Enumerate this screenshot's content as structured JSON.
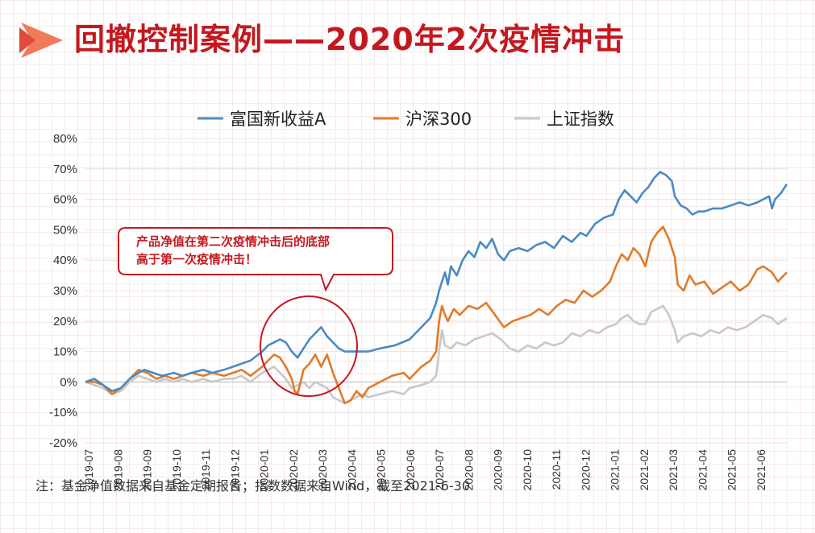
{
  "page": {
    "title": "回撤控制案例——2020年2次疫情冲击",
    "note": "注：基金净值数据来自基金定期报告；指数数据来自Wind，截至2021-6-30",
    "annotation": {
      "line1": "产品净值在第二次疫情冲击后的底部",
      "line2": "高于第一次疫情冲击！"
    }
  },
  "colors": {
    "accent": "#c3181f",
    "series_blue": "#4a8ac4",
    "series_orange": "#e07b2a",
    "series_gray": "#c8c8c8"
  },
  "chart_data": {
    "type": "line",
    "ylim": [
      -20,
      80
    ],
    "yticks": [
      "80%",
      "70%",
      "60%",
      "50%",
      "40%",
      "30%",
      "20%",
      "10%",
      "0%",
      "-10%",
      "-20%"
    ],
    "yticks_values": [
      80,
      70,
      60,
      50,
      40,
      30,
      20,
      10,
      0,
      -10,
      -20
    ],
    "categories": [
      "2019-07",
      "2019-08",
      "2019-09",
      "2019-10",
      "2019-11",
      "2019-12",
      "2020-01",
      "2020-02",
      "2020-03",
      "2020-04",
      "2020-05",
      "2020-06",
      "2020-07",
      "2020-08",
      "2020-09",
      "2020-10",
      "2020-11",
      "2020-12",
      "2021-01",
      "2021-02",
      "2021-03",
      "2021-04",
      "2021-05",
      "2021-06"
    ],
    "x_range": [
      0,
      23.8
    ],
    "legend_position": "top-center",
    "series": [
      {
        "name": "富国新收益A",
        "color": "#4a8ac4",
        "points": [
          [
            0,
            0
          ],
          [
            0.3,
            1
          ],
          [
            0.6,
            -1
          ],
          [
            0.9,
            -3
          ],
          [
            1.2,
            -2
          ],
          [
            1.5,
            1
          ],
          [
            1.8,
            3
          ],
          [
            2.0,
            4
          ],
          [
            2.3,
            3
          ],
          [
            2.6,
            2
          ],
          [
            3.0,
            3
          ],
          [
            3.3,
            2
          ],
          [
            3.6,
            3
          ],
          [
            4.0,
            4
          ],
          [
            4.3,
            3
          ],
          [
            4.7,
            4
          ],
          [
            5.0,
            5
          ],
          [
            5.3,
            6
          ],
          [
            5.6,
            7
          ],
          [
            6.0,
            10
          ],
          [
            6.2,
            12
          ],
          [
            6.4,
            13
          ],
          [
            6.6,
            14
          ],
          [
            6.8,
            13
          ],
          [
            7.0,
            10
          ],
          [
            7.2,
            8
          ],
          [
            7.4,
            11
          ],
          [
            7.6,
            14
          ],
          [
            7.8,
            16
          ],
          [
            8.0,
            18
          ],
          [
            8.2,
            15
          ],
          [
            8.4,
            13
          ],
          [
            8.6,
            11
          ],
          [
            8.8,
            10
          ],
          [
            9.0,
            10
          ],
          [
            9.3,
            10
          ],
          [
            9.6,
            10
          ],
          [
            10.0,
            11
          ],
          [
            10.5,
            12
          ],
          [
            11.0,
            14
          ],
          [
            11.4,
            18
          ],
          [
            11.7,
            21
          ],
          [
            11.9,
            26
          ],
          [
            12.0,
            30
          ],
          [
            12.1,
            33
          ],
          [
            12.2,
            36
          ],
          [
            12.3,
            32
          ],
          [
            12.4,
            38
          ],
          [
            12.6,
            35
          ],
          [
            12.8,
            40
          ],
          [
            13.0,
            43
          ],
          [
            13.2,
            41
          ],
          [
            13.4,
            46
          ],
          [
            13.6,
            44
          ],
          [
            13.8,
            47
          ],
          [
            14.0,
            42
          ],
          [
            14.2,
            40
          ],
          [
            14.4,
            43
          ],
          [
            14.7,
            44
          ],
          [
            15.0,
            43
          ],
          [
            15.3,
            45
          ],
          [
            15.6,
            46
          ],
          [
            15.9,
            44
          ],
          [
            16.2,
            48
          ],
          [
            16.5,
            46
          ],
          [
            16.8,
            49
          ],
          [
            17.0,
            48
          ],
          [
            17.3,
            52
          ],
          [
            17.6,
            54
          ],
          [
            17.9,
            55
          ],
          [
            18.1,
            60
          ],
          [
            18.3,
            63
          ],
          [
            18.5,
            61
          ],
          [
            18.7,
            59
          ],
          [
            18.9,
            62
          ],
          [
            19.1,
            64
          ],
          [
            19.3,
            67
          ],
          [
            19.5,
            69
          ],
          [
            19.7,
            68
          ],
          [
            19.9,
            66
          ],
          [
            20.0,
            61
          ],
          [
            20.2,
            58
          ],
          [
            20.4,
            57
          ],
          [
            20.6,
            55
          ],
          [
            20.8,
            56
          ],
          [
            21.0,
            56
          ],
          [
            21.3,
            57
          ],
          [
            21.6,
            57
          ],
          [
            21.9,
            58
          ],
          [
            22.2,
            59
          ],
          [
            22.5,
            58
          ],
          [
            22.8,
            59
          ],
          [
            23.0,
            60
          ],
          [
            23.2,
            61
          ],
          [
            23.3,
            57
          ],
          [
            23.4,
            60
          ],
          [
            23.6,
            62
          ],
          [
            23.8,
            65
          ]
        ]
      },
      {
        "name": "沪深300",
        "color": "#e07b2a",
        "points": [
          [
            0,
            0
          ],
          [
            0.3,
            0
          ],
          [
            0.6,
            -1
          ],
          [
            0.9,
            -4
          ],
          [
            1.2,
            -2
          ],
          [
            1.5,
            1
          ],
          [
            1.8,
            4
          ],
          [
            2.1,
            3
          ],
          [
            2.4,
            1
          ],
          [
            2.7,
            2
          ],
          [
            3.0,
            1
          ],
          [
            3.3,
            2
          ],
          [
            3.6,
            3
          ],
          [
            4.0,
            2
          ],
          [
            4.3,
            3
          ],
          [
            4.7,
            2
          ],
          [
            5.0,
            3
          ],
          [
            5.3,
            4
          ],
          [
            5.6,
            2
          ],
          [
            6.0,
            5
          ],
          [
            6.2,
            7
          ],
          [
            6.4,
            9
          ],
          [
            6.6,
            8
          ],
          [
            6.8,
            5
          ],
          [
            7.0,
            1
          ],
          [
            7.1,
            -3
          ],
          [
            7.2,
            -4
          ],
          [
            7.4,
            4
          ],
          [
            7.6,
            6
          ],
          [
            7.8,
            9
          ],
          [
            8.0,
            5
          ],
          [
            8.2,
            9
          ],
          [
            8.4,
            3
          ],
          [
            8.6,
            -2
          ],
          [
            8.8,
            -7
          ],
          [
            9.0,
            -6
          ],
          [
            9.2,
            -3
          ],
          [
            9.4,
            -5
          ],
          [
            9.6,
            -2
          ],
          [
            10.0,
            0
          ],
          [
            10.4,
            2
          ],
          [
            10.8,
            3
          ],
          [
            11.0,
            1
          ],
          [
            11.4,
            5
          ],
          [
            11.7,
            7
          ],
          [
            11.9,
            10
          ],
          [
            12.0,
            20
          ],
          [
            12.1,
            25
          ],
          [
            12.2,
            22
          ],
          [
            12.3,
            20
          ],
          [
            12.5,
            24
          ],
          [
            12.7,
            22
          ],
          [
            13.0,
            25
          ],
          [
            13.3,
            24
          ],
          [
            13.6,
            26
          ],
          [
            13.9,
            22
          ],
          [
            14.2,
            18
          ],
          [
            14.5,
            20
          ],
          [
            14.8,
            21
          ],
          [
            15.1,
            22
          ],
          [
            15.4,
            24
          ],
          [
            15.7,
            22
          ],
          [
            16.0,
            25
          ],
          [
            16.3,
            27
          ],
          [
            16.6,
            26
          ],
          [
            16.9,
            30
          ],
          [
            17.2,
            28
          ],
          [
            17.5,
            30
          ],
          [
            17.8,
            33
          ],
          [
            18.0,
            38
          ],
          [
            18.2,
            42
          ],
          [
            18.4,
            40
          ],
          [
            18.6,
            44
          ],
          [
            18.8,
            42
          ],
          [
            19.0,
            38
          ],
          [
            19.2,
            46
          ],
          [
            19.4,
            49
          ],
          [
            19.6,
            51
          ],
          [
            19.8,
            47
          ],
          [
            20.0,
            41
          ],
          [
            20.1,
            32
          ],
          [
            20.3,
            30
          ],
          [
            20.5,
            35
          ],
          [
            20.7,
            32
          ],
          [
            21.0,
            33
          ],
          [
            21.3,
            29
          ],
          [
            21.6,
            31
          ],
          [
            21.9,
            33
          ],
          [
            22.2,
            30
          ],
          [
            22.5,
            32
          ],
          [
            22.8,
            37
          ],
          [
            23.0,
            38
          ],
          [
            23.3,
            36
          ],
          [
            23.5,
            33
          ],
          [
            23.8,
            36
          ]
        ]
      },
      {
        "name": "上证指数",
        "color": "#c8c8c8",
        "points": [
          [
            0,
            0
          ],
          [
            0.3,
            -1
          ],
          [
            0.6,
            -2
          ],
          [
            0.9,
            -4
          ],
          [
            1.2,
            -3
          ],
          [
            1.5,
            0
          ],
          [
            1.8,
            2
          ],
          [
            2.1,
            1
          ],
          [
            2.4,
            0
          ],
          [
            2.7,
            1
          ],
          [
            3.0,
            0
          ],
          [
            3.3,
            1
          ],
          [
            3.6,
            0
          ],
          [
            4.0,
            1
          ],
          [
            4.3,
            0
          ],
          [
            4.7,
            1
          ],
          [
            5.0,
            1
          ],
          [
            5.3,
            2
          ],
          [
            5.6,
            0
          ],
          [
            6.0,
            3
          ],
          [
            6.2,
            4
          ],
          [
            6.4,
            5
          ],
          [
            6.6,
            3
          ],
          [
            6.8,
            1
          ],
          [
            7.0,
            -2
          ],
          [
            7.2,
            -1
          ],
          [
            7.4,
            0
          ],
          [
            7.6,
            -2
          ],
          [
            7.8,
            0
          ],
          [
            8.0,
            -1
          ],
          [
            8.2,
            -2
          ],
          [
            8.4,
            -5
          ],
          [
            8.6,
            -6
          ],
          [
            8.8,
            -7
          ],
          [
            9.0,
            -6
          ],
          [
            9.2,
            -5
          ],
          [
            9.4,
            -4
          ],
          [
            9.6,
            -5
          ],
          [
            10.0,
            -4
          ],
          [
            10.4,
            -3
          ],
          [
            10.8,
            -4
          ],
          [
            11.0,
            -2
          ],
          [
            11.4,
            -1
          ],
          [
            11.7,
            0
          ],
          [
            11.9,
            2
          ],
          [
            12.0,
            10
          ],
          [
            12.1,
            17
          ],
          [
            12.2,
            12
          ],
          [
            12.4,
            11
          ],
          [
            12.6,
            13
          ],
          [
            12.9,
            12
          ],
          [
            13.2,
            14
          ],
          [
            13.5,
            15
          ],
          [
            13.8,
            16
          ],
          [
            14.1,
            14
          ],
          [
            14.4,
            11
          ],
          [
            14.7,
            10
          ],
          [
            15.0,
            12
          ],
          [
            15.3,
            11
          ],
          [
            15.6,
            13
          ],
          [
            15.9,
            12
          ],
          [
            16.2,
            13
          ],
          [
            16.5,
            16
          ],
          [
            16.8,
            15
          ],
          [
            17.1,
            17
          ],
          [
            17.4,
            16
          ],
          [
            17.7,
            18
          ],
          [
            18.0,
            19
          ],
          [
            18.2,
            21
          ],
          [
            18.4,
            22
          ],
          [
            18.6,
            20
          ],
          [
            18.8,
            19
          ],
          [
            19.0,
            19
          ],
          [
            19.2,
            23
          ],
          [
            19.4,
            24
          ],
          [
            19.6,
            25
          ],
          [
            19.8,
            22
          ],
          [
            20.0,
            17
          ],
          [
            20.1,
            13
          ],
          [
            20.3,
            15
          ],
          [
            20.6,
            16
          ],
          [
            20.9,
            15
          ],
          [
            21.2,
            17
          ],
          [
            21.5,
            16
          ],
          [
            21.8,
            18
          ],
          [
            22.1,
            17
          ],
          [
            22.4,
            18
          ],
          [
            22.7,
            20
          ],
          [
            23.0,
            22
          ],
          [
            23.3,
            21
          ],
          [
            23.5,
            19
          ],
          [
            23.8,
            21
          ]
        ]
      }
    ]
  }
}
